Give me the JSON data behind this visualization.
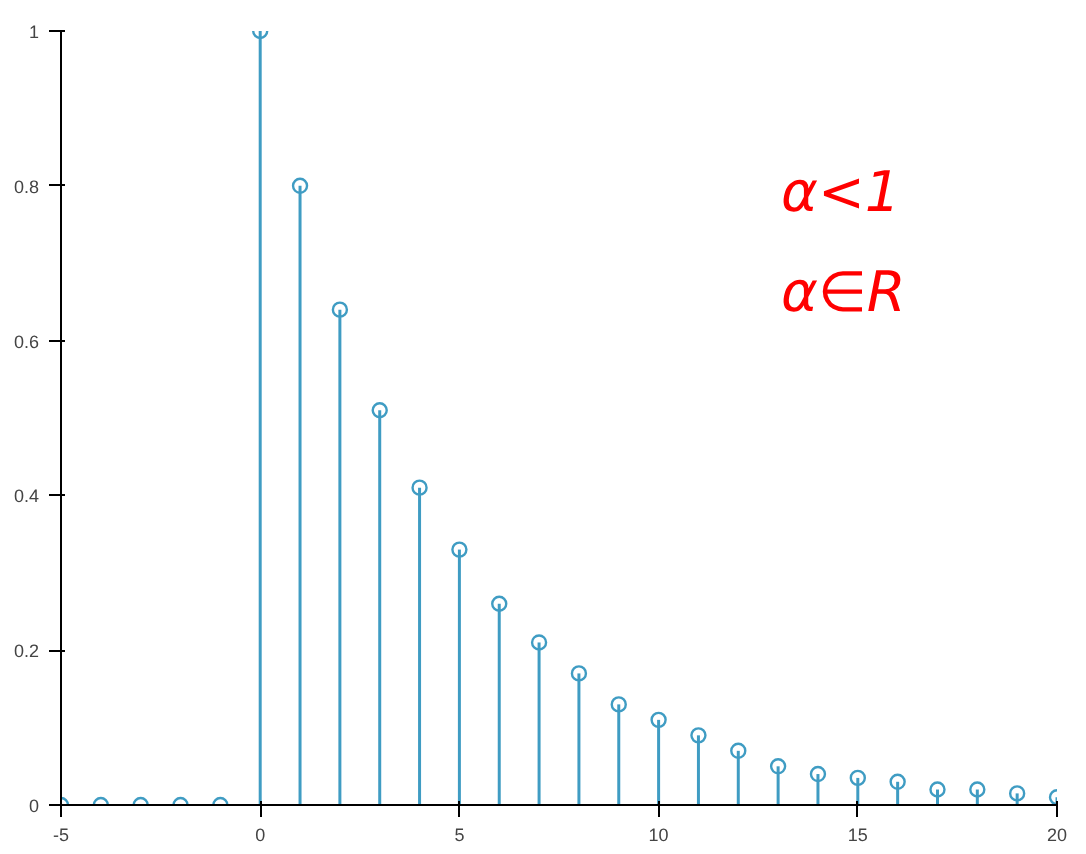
{
  "chart_data": {
    "type": "lollipop",
    "x": [
      -5,
      -4,
      -3,
      -2,
      -1,
      0,
      1,
      2,
      3,
      4,
      5,
      6,
      7,
      8,
      9,
      10,
      11,
      12,
      13,
      14,
      15,
      16,
      17,
      18,
      19,
      20
    ],
    "values": [
      0,
      0,
      0,
      0,
      0,
      1,
      0.8,
      0.64,
      0.51,
      0.41,
      0.33,
      0.26,
      0.21,
      0.17,
      0.13,
      0.11,
      0.09,
      0.07,
      0.05,
      0.04,
      0.035,
      0.03,
      0.02,
      0.02,
      0.015,
      0.01
    ],
    "color": "#3f9cc3",
    "marker": "circle",
    "xlim": [
      -5,
      20
    ],
    "xticks": [
      -5,
      0,
      5,
      10,
      15,
      20
    ],
    "ylim": [
      0,
      1
    ],
    "yticks": [
      0,
      {
        "value": 0.2,
        "label": "0.2"
      },
      {
        "value": 0.4,
        "label": "0.4"
      },
      {
        "value": 0.6,
        "label": "0.6"
      },
      {
        "value": 0.8,
        "label": "0.8"
      },
      1
    ],
    "grid": false,
    "annotations": [
      "α<1",
      "α∈R"
    ]
  }
}
